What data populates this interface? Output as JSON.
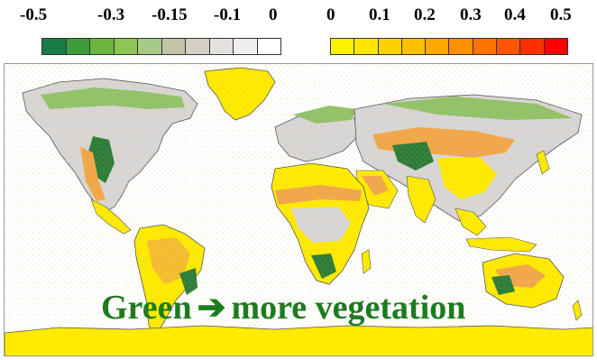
{
  "veg_legend": {
    "ticks": [
      "-0.5",
      "-0.3",
      "-0.15",
      "-0.1",
      "0"
    ],
    "colors": [
      "#1a7a45",
      "#3f9a3a",
      "#6bb43f",
      "#8cc554",
      "#a7c98a",
      "#c3c3a6",
      "#d4cec4",
      "#e4e0dd",
      "#f0eeee",
      "#ffffff"
    ]
  },
  "warm_legend": {
    "ticks": [
      "0",
      "0.1",
      "0.2",
      "0.3",
      "0.4",
      "0.5"
    ],
    "colors": [
      "#fff200",
      "#ffe600",
      "#ffd200",
      "#ffbf00",
      "#ffa800",
      "#ff9000",
      "#ff7300",
      "#ff5500",
      "#ff3000",
      "#ff0000"
    ]
  },
  "caption": {
    "text_green": "Green",
    "arrow_icon": "right-arrow-icon",
    "text_rest": "more vegetation",
    "color": "#1e7b1e"
  },
  "map_colors": {
    "land_yellow": "#ffea00",
    "orange": "#f2a84a",
    "grey": "#d8d6d6",
    "green_light": "#92c26a",
    "green_dark": "#2e7d3a",
    "coast": "#555555"
  }
}
